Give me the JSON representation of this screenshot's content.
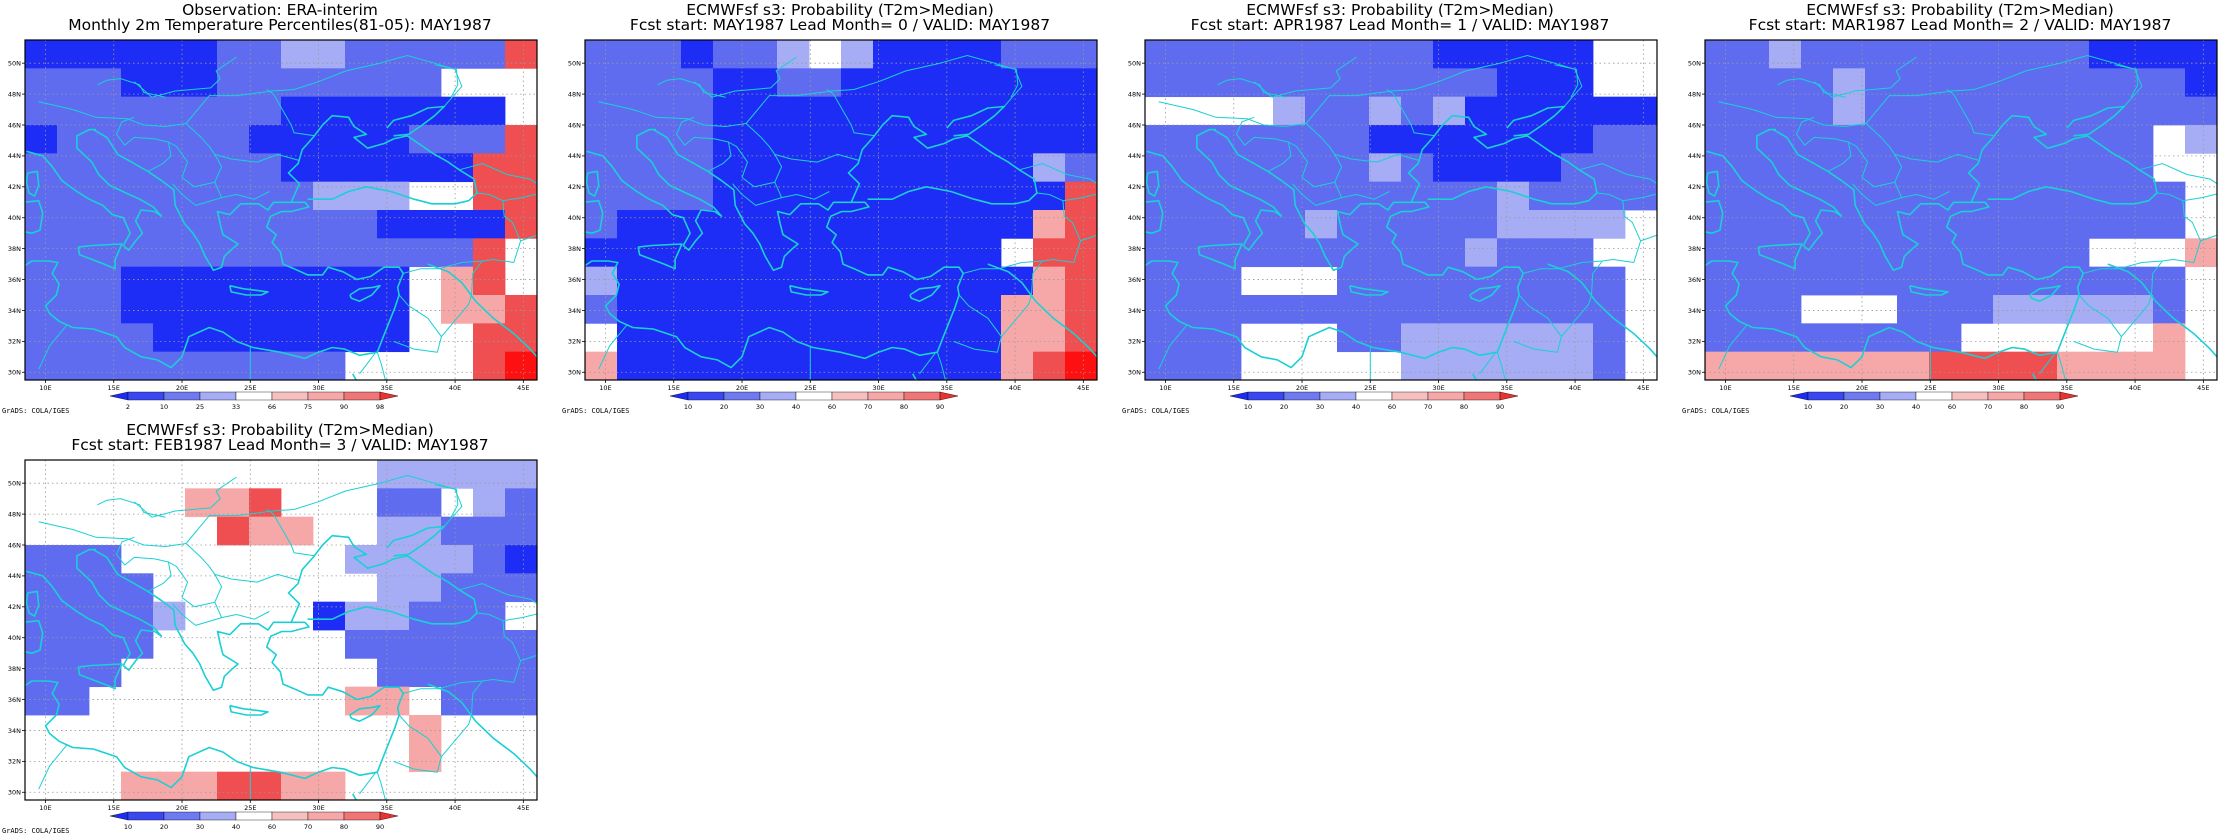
{
  "panels": [
    {
      "title1": "Observation: ERA-interim",
      "title2": "Monthly 2m Temperature Percentiles(81-05): MAY1987",
      "grid": [
        "aaaaaabbccbbbbbf",
        "bbbaaabbbbbbbwww",
        "bbbbbbbbaaaaaaaw",
        "abbbbbbaaaaabbbf",
        "bbbbbbbbaaaaaaff",
        "bbbbbbbbbcccwwff",
        "bbbbbbbbbbbaaaaf",
        "bbbbbbbbbbbbbbfw",
        "bbbaaaaaaaaawefw",
        "bbbaaaaaaaaaweef",
        "bbbbaaaaaaaawwff",
        "bbbbbbbbbbwwwwfg"
      ],
      "colorbar": {
        "labels": [
          "2",
          "10",
          "25",
          "33",
          "66",
          "75",
          "90",
          "98"
        ]
      }
    },
    {
      "title1": "ECMWFsf s3: Probability (T2m>Median)",
      "title2": "Fcst start: MAY1987   Lead Month= 0 / VALID: MAY1987",
      "grid": [
        "bbbabbcwcaaaabbb",
        "bbbbaabbaaaaaaaa",
        "bbbbaaaaaaaaaaaa",
        "bbbbaaaaaaaaaaaa",
        "bbbbaaaaaaaaaacb",
        "bbbbaaaaaaaaaaaf",
        "baaaaaaaaaaaaaef",
        "aaaaaaaaaaaaawff",
        "caaaaaaaaaaaaaef",
        "baaaaaaaaaaaaeef",
        "waaaaaaaaaaaaeef",
        "eaaaaaaaaaaaaefg"
      ],
      "colorbar": {
        "labels": [
          "10",
          "20",
          "30",
          "40",
          "60",
          "70",
          "80",
          "90"
        ]
      }
    },
    {
      "title1": "ECMWFsf s3: Probability (T2m>Median)",
      "title2": "Fcst start: APR1987   Lead Month= 1 / VALID: MAY1987",
      "grid": [
        "bbbbbbbbbaaaaaww",
        "bbbbbbbbbbbaaaww",
        "wwwwcbbcbcaaaaaa",
        "bbbbbbbaaaaaaabb",
        "bbbbbbbcbaaaabbb",
        "bbbbbbbbbbbcbbbb",
        "bbbbbcbbbbbccccw",
        "bbbbbbbbbbcbbbww",
        "bbbwwwbbbbbbbbbw",
        "bbbbbbbbbbbbbbbw",
        "bbbwwwbbccccccbw",
        "bbbwwwwwccccccbw"
      ],
      "colorbar": {
        "labels": [
          "10",
          "20",
          "30",
          "40",
          "60",
          "70",
          "80",
          "90"
        ]
      }
    },
    {
      "title1": "ECMWFsf s3: Probability (T2m>Median)",
      "title2": "Fcst start: MAR1987   Lead Month= 2 / VALID: MAY1987",
      "grid": [
        "bbcbbbbbbbbbaaaa",
        "bbbbcbbbbbbbbbba",
        "bbbbcbbbbbbbbbbb",
        "bbbbbbbbbbbbbbwc",
        "bbbbbbbbbbbbbbww",
        "bbbbbbbbbbbbbbbw",
        "bbbbbbbbbbbbbbbw",
        "bbbbbbbbbbbbwwwe",
        "bbbbbbbbbbbbbbbw",
        "bbbwwwbbbcccccbw",
        "bbbbbbbbwwwwwwew",
        "eeeeeeeffffeeeew"
      ],
      "colorbar": {
        "labels": [
          "10",
          "20",
          "30",
          "40",
          "60",
          "70",
          "80",
          "90"
        ]
      }
    },
    {
      "title1": "ECMWFsf s3: Probability (T2m>Median)",
      "title2": "Fcst start: FEB1987   Lead Month= 3 / VALID: MAY1987",
      "grid": [
        "wwwwwwwwwwwccccc",
        "wwwwweefwwwbbwcb",
        "wwwwwwfeewwccbbb",
        "bbbwwwwwwwccccba",
        "bbbbwwwwwwwccbbb",
        "bbbbcwwwwaccbbbw",
        "bbbbwwwwwwbbbbbb",
        "bbbwwwwwwwwbbbbb",
        "bbwwwwwwwweewbbb",
        "wwwwwwwwwwwwewww",
        "wwwwwwwwwwwwewww",
        "wwweeeffeewwwwww"
      ],
      "colorbar": {
        "labels": [
          "10",
          "20",
          "30",
          "40",
          "60",
          "70",
          "80",
          "90"
        ]
      }
    }
  ],
  "map_axes": {
    "x_labels": [
      "10E",
      "15E",
      "20E",
      "25E",
      "30E",
      "35E",
      "40E",
      "45E"
    ],
    "y_labels": [
      "50N",
      "48N",
      "46N",
      "44N",
      "42N",
      "40N",
      "38N",
      "36N",
      "34N",
      "32N",
      "30N"
    ]
  },
  "palette": {
    "a": "#1e2df5",
    "b": "#5f6cf0",
    "c": "#a6adf4",
    "w": "#ffffff",
    "e": "#f6a8a8",
    "f": "#ef4f50",
    "g": "#ff1010"
  },
  "coast_color": "#1ad0d4",
  "credit": "GrADS: COLA/IGES"
}
